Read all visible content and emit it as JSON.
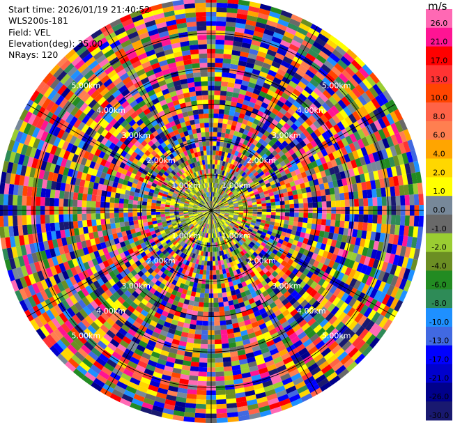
{
  "header": {
    "start_time": "Start time: 2026/01/19 21:40:52",
    "instrument": "WLS200s-181",
    "field": "Field: VEL",
    "elevation": "Elevation(deg): 35.00",
    "nrays": "NRays: 120"
  },
  "chart_data": {
    "type": "ppi",
    "field": "VEL",
    "units": "m/s",
    "n_rays": 120,
    "elevation_deg": 35.0,
    "max_range_km": 6.0,
    "range_ring_labels": [
      "1.00km",
      "2.00km",
      "3.00km",
      "4.00km",
      "5.00km"
    ],
    "range_ring_km": [
      1,
      2,
      3,
      4,
      5
    ],
    "range_ring_label_bearings_deg": [
      315,
      135
    ],
    "colorbar": {
      "ticks": [
        "26.0",
        "21.0",
        "17.0",
        "13.0",
        "10.0",
        "8.0",
        "6.0",
        "4.0",
        "2.0",
        "1.0",
        "0.0",
        "-1.0",
        "-2.0",
        "-4.0",
        "-6.0",
        "-8.0",
        "-10.0",
        "-13.0",
        "-17.0",
        "-21.0",
        "-26.0",
        "-30.0"
      ],
      "colors": [
        "#ff69b4",
        "#ff1493",
        "#ff0000",
        "#ff3333",
        "#ff4500",
        "#ff6347",
        "#ff7f50",
        "#ffa500",
        "#ffd700",
        "#ffff00",
        "#778899",
        "#696969",
        "#9acd32",
        "#6b8e23",
        "#228b22",
        "#2e8b57",
        "#1e90ff",
        "#4169e1",
        "#0000ff",
        "#0000cd",
        "#00008b",
        "#191970"
      ]
    },
    "near_field": {
      "radius_km": 1.0,
      "dominant_colors": [
        "#ffff00",
        "#9acd32",
        "#778899",
        "#6b8e23"
      ]
    },
    "far_field_note": "noisy velocities beyond ~1 km span full colour range"
  }
}
